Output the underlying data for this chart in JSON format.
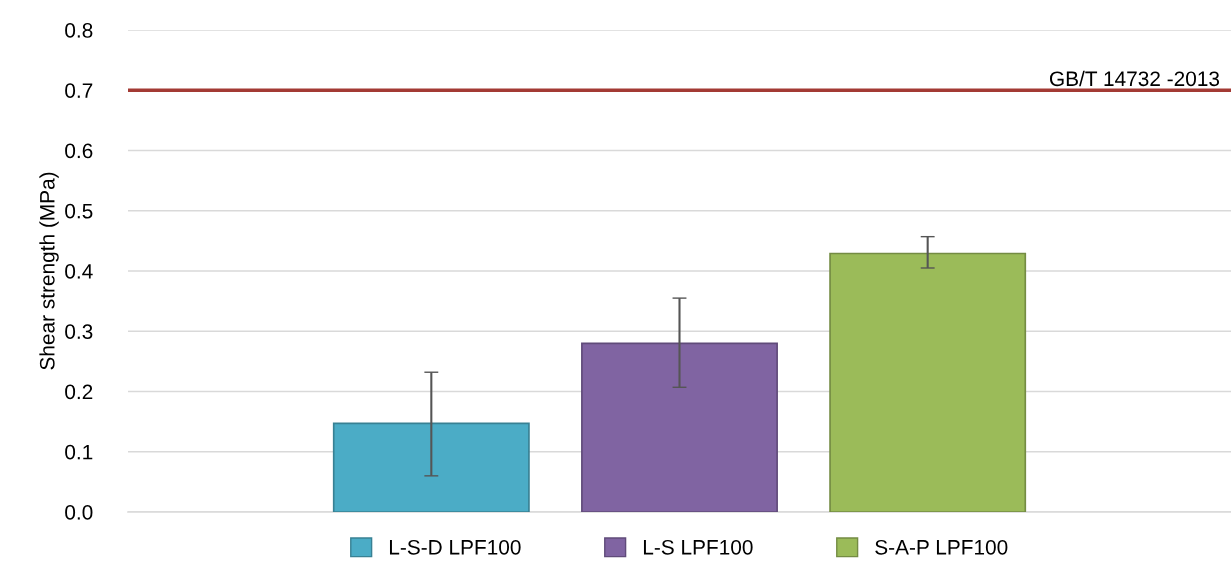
{
  "chart_data": {
    "type": "bar",
    "ylabel": "Shear strength (MPa)",
    "categories": [
      null
    ],
    "series": [
      {
        "name": "L-S-D LPF100",
        "color": "#4bacc6",
        "values": [
          0.147
        ],
        "errors": [
          [
            0.06,
            0.232
          ]
        ]
      },
      {
        "name": "L-S LPF100",
        "color": "#8064a2",
        "values": [
          0.28
        ],
        "errors": [
          [
            0.207,
            0.355
          ]
        ]
      },
      {
        "name": "S-A-P LPF100",
        "color": "#9bbb59",
        "values": [
          0.429
        ],
        "errors": [
          [
            0.405,
            0.457
          ]
        ]
      }
    ],
    "ylim": [
      0.0,
      0.8
    ],
    "yticks": [
      {
        "value": 0,
        "label": "0.0"
      },
      0.1,
      0.2,
      0.3,
      0.4,
      0.5,
      0.6,
      0.7,
      0.8
    ],
    "ref_lines": [
      {
        "axis": "y",
        "value": 0.7,
        "label": "GB/T 14732 -2013",
        "color": "#a33a34"
      }
    ],
    "grid": "y",
    "legend": "bottom"
  }
}
